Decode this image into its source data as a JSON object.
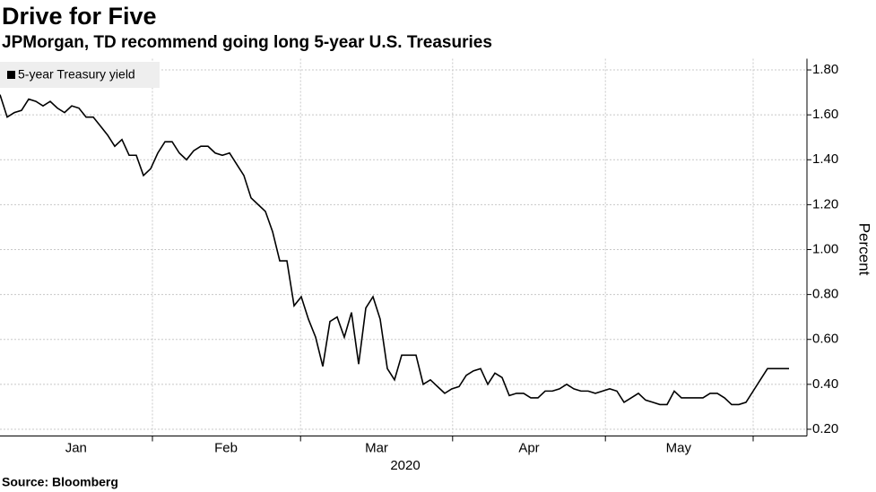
{
  "chart_data": {
    "type": "line",
    "title": "Drive for Five",
    "subtitle": "JPMorgan, TD recommend going long 5-year U.S. Treasuries",
    "source": "Source: Bloomberg",
    "ylabel": "Percent",
    "xlabel": "2020",
    "legend": "top-left",
    "grid": true,
    "xlim": [
      0,
      112.5
    ],
    "xticks": [
      {
        "value": 10.6,
        "label": "Jan"
      },
      {
        "value": 31.5,
        "label": "Feb"
      },
      {
        "value": 52.5,
        "label": "Mar"
      },
      {
        "value": 73.75,
        "label": "Apr"
      },
      {
        "value": 94.6,
        "label": "May"
      }
    ],
    "xgrid": [
      21.25,
      41.9,
      63.1,
      84.4,
      105
    ],
    "ylim": [
      0.17,
      1.85
    ],
    "yticks": [
      {
        "value": 0.2,
        "label": "0.20"
      },
      {
        "value": 0.4,
        "label": "0.40"
      },
      {
        "value": 0.6,
        "label": "0.60"
      },
      {
        "value": 0.8,
        "label": "0.80"
      },
      {
        "value": 1.0,
        "label": "1.00"
      },
      {
        "value": 1.2,
        "label": "1.20"
      },
      {
        "value": 1.4,
        "label": "1.40"
      },
      {
        "value": 1.6,
        "label": "1.60"
      },
      {
        "value": 1.8,
        "label": "1.80"
      }
    ],
    "x": [
      0,
      1,
      2,
      3,
      4,
      5,
      6,
      7,
      8,
      9,
      10,
      11,
      12,
      13,
      14,
      15,
      16,
      17,
      18,
      19,
      20,
      21,
      22,
      23,
      24,
      25,
      26,
      27,
      28,
      29,
      30,
      31,
      32,
      33,
      34,
      35,
      36,
      37,
      38,
      39,
      40,
      41,
      42,
      43,
      44,
      45,
      46,
      47,
      48,
      49,
      50,
      51,
      52,
      53,
      54,
      55,
      56,
      57,
      58,
      59,
      60,
      61,
      62,
      63,
      64,
      65,
      66,
      67,
      68,
      69,
      70,
      71,
      72,
      73,
      74,
      75,
      76,
      77,
      78,
      79,
      80,
      81,
      82,
      83,
      84,
      85,
      86,
      87,
      88,
      89,
      90,
      91,
      92,
      93,
      94,
      95,
      96,
      97,
      98,
      99,
      100,
      101,
      102,
      103,
      104,
      105,
      106,
      107,
      108,
      109,
      110
    ],
    "series": [
      {
        "name": "5-year Treasury yield",
        "color": "#000000",
        "values": [
          1.69,
          1.59,
          1.61,
          1.62,
          1.67,
          1.66,
          1.64,
          1.66,
          1.63,
          1.61,
          1.64,
          1.63,
          1.59,
          1.59,
          1.55,
          1.51,
          1.46,
          1.49,
          1.42,
          1.42,
          1.33,
          1.36,
          1.43,
          1.48,
          1.48,
          1.43,
          1.4,
          1.44,
          1.46,
          1.46,
          1.43,
          1.42,
          1.43,
          1.38,
          1.33,
          1.23,
          1.2,
          1.17,
          1.08,
          0.95,
          0.95,
          0.75,
          0.79,
          0.69,
          0.61,
          0.48,
          0.68,
          0.7,
          0.61,
          0.72,
          0.49,
          0.74,
          0.79,
          0.69,
          0.47,
          0.42,
          0.53,
          0.53,
          0.53,
          0.4,
          0.42,
          0.39,
          0.36,
          0.38,
          0.39,
          0.44,
          0.46,
          0.47,
          0.4,
          0.45,
          0.43,
          0.35,
          0.36,
          0.36,
          0.34,
          0.34,
          0.37,
          0.37,
          0.38,
          0.4,
          0.38,
          0.37,
          0.37,
          0.36,
          0.37,
          0.38,
          0.37,
          0.32,
          0.34,
          0.36,
          0.33,
          0.32,
          0.31,
          0.31,
          0.37,
          0.34,
          0.34,
          0.34,
          0.34,
          0.36,
          0.36,
          0.34,
          0.31,
          0.31,
          0.32,
          0.37,
          0.42,
          0.47,
          0.47,
          0.47,
          0.47
        ]
      }
    ]
  }
}
